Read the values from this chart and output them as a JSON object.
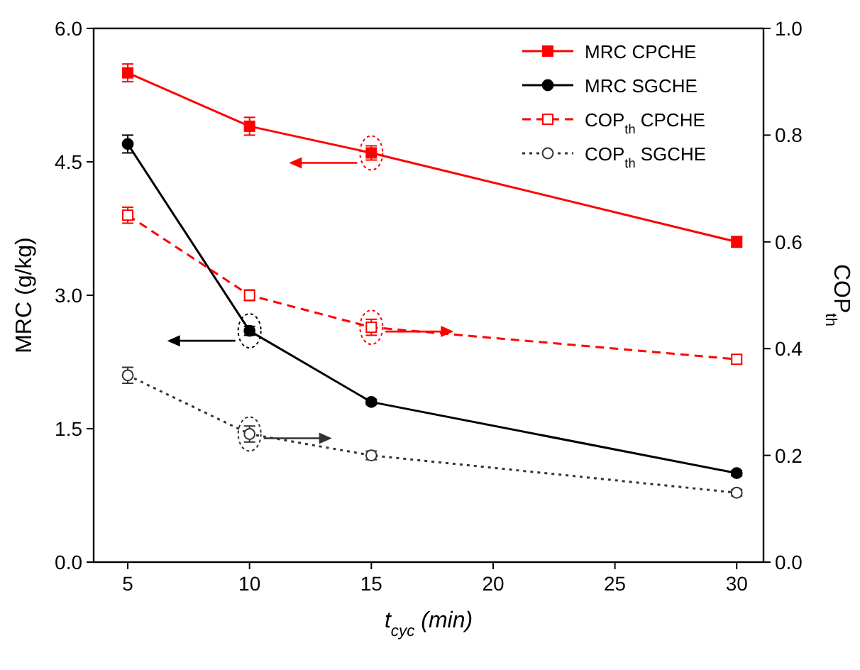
{
  "chart_data": {
    "type": "line",
    "xlabel": "t$_{cyc}$ (min)",
    "ylabel": "MRC (g/kg)",
    "y2label": "COP$_{th}$",
    "x": [
      5,
      10,
      15,
      30
    ],
    "xlim": [
      3.6,
      31.1
    ],
    "xticks": [
      5,
      10,
      15,
      20,
      25,
      30
    ],
    "ylim": [
      0,
      6
    ],
    "yticks": [
      {
        "value": 0,
        "label": "0.0"
      },
      {
        "value": 1.5,
        "label": "1.5"
      },
      {
        "value": 3,
        "label": "3.0"
      },
      {
        "value": 4.5,
        "label": "4.5"
      },
      {
        "value": 6,
        "label": "6.0"
      }
    ],
    "y2lim": [
      0,
      1
    ],
    "y2ticks": [
      {
        "value": 0,
        "label": "0.0"
      },
      {
        "value": 0.2,
        "label": "0.2"
      },
      {
        "value": 0.4,
        "label": "0.4"
      },
      {
        "value": 0.6,
        "label": "0.6"
      },
      {
        "value": 0.8,
        "label": "0.8"
      },
      {
        "value": 1,
        "label": "1.0"
      }
    ],
    "legend": "top right",
    "grid": false,
    "series": [
      {
        "name": "MRC CPCHE",
        "color": "#ff0000",
        "values": [
          5.5,
          4.9,
          4.6,
          3.6
        ],
        "errors": [
          0.1,
          0.1,
          0.08,
          0.06
        ],
        "marker": "square",
        "line_style": "solid"
      },
      {
        "name": "MRC SGCHE",
        "color": "#000000",
        "values": [
          4.7,
          2.6,
          1.8,
          1.0
        ],
        "errors": [
          0.1,
          0.05,
          0.03,
          0.03
        ],
        "marker": "circle",
        "line_style": "solid"
      },
      {
        "name": "COP$_{th}$ CPCHE",
        "color": "#ff0000",
        "values": [
          0.65,
          0.5,
          0.44,
          0.38
        ],
        "errors": [
          0.015,
          0.01,
          0.015,
          0.008
        ],
        "marker": "square",
        "line_style": "dashed",
        "axis": "y2"
      },
      {
        "name": "COP$_{th}$ SGCHE",
        "color": "#333333",
        "values": [
          0.35,
          0.24,
          0.2,
          0.13
        ],
        "errors": [
          0.015,
          0.015,
          0.008,
          0.006
        ],
        "marker": "circle",
        "line_style": "dotted",
        "axis": "y2"
      }
    ]
  }
}
